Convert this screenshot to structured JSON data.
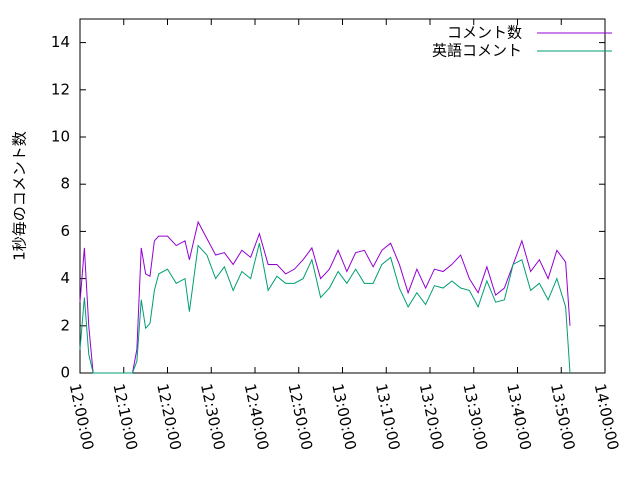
{
  "chart_data": {
    "type": "line",
    "ylabel": "1秒毎のコメント数",
    "x": [
      "12:00:00",
      "12:01:00",
      "12:02:00",
      "12:03:00",
      "12:06:00",
      "12:09:00",
      "12:12:00",
      "12:13:00",
      "12:14:00",
      "12:15:00",
      "12:16:00",
      "12:17:00",
      "12:18:00",
      "12:20:00",
      "12:22:00",
      "12:24:00",
      "12:25:00",
      "12:27:00",
      "12:29:00",
      "12:31:00",
      "12:33:00",
      "12:35:00",
      "12:37:00",
      "12:39:00",
      "12:41:00",
      "12:43:00",
      "12:45:00",
      "12:47:00",
      "12:49:00",
      "12:51:00",
      "12:53:00",
      "12:55:00",
      "12:57:00",
      "12:59:00",
      "13:01:00",
      "13:03:00",
      "13:05:00",
      "13:07:00",
      "13:09:00",
      "13:11:00",
      "13:13:00",
      "13:15:00",
      "13:17:00",
      "13:19:00",
      "13:21:00",
      "13:23:00",
      "13:25:00",
      "13:27:00",
      "13:29:00",
      "13:31:00",
      "13:33:00",
      "13:35:00",
      "13:37:00",
      "13:39:00",
      "13:41:00",
      "13:43:00",
      "13:45:00",
      "13:47:00",
      "13:49:00",
      "13:51:00",
      "13:52:00"
    ],
    "series": [
      {
        "name": "コメント数",
        "color": "#9400d3",
        "values": [
          3.0,
          5.3,
          2.0,
          0,
          0,
          0,
          0,
          1.0,
          5.3,
          4.2,
          4.1,
          5.6,
          5.8,
          5.8,
          5.4,
          5.6,
          4.8,
          6.4,
          5.7,
          5.0,
          5.1,
          4.6,
          5.2,
          4.9,
          5.9,
          4.6,
          4.6,
          4.2,
          4.4,
          4.8,
          5.3,
          4.0,
          4.4,
          5.2,
          4.3,
          5.1,
          5.2,
          4.5,
          5.2,
          5.5,
          4.6,
          3.4,
          4.4,
          3.6,
          4.4,
          4.3,
          4.6,
          5.0,
          4.0,
          3.4,
          4.5,
          3.3,
          3.6,
          4.6,
          5.6,
          4.3,
          4.8,
          4.0,
          5.2,
          4.7,
          2.0
        ]
      },
      {
        "name": "英語コメント",
        "color": "#009e73",
        "values": [
          1.0,
          3.2,
          0.8,
          0,
          0,
          0,
          0,
          0.5,
          3.1,
          1.9,
          2.1,
          3.5,
          4.2,
          4.4,
          3.8,
          4.0,
          2.6,
          5.4,
          5.0,
          4.0,
          4.5,
          3.5,
          4.3,
          4.0,
          5.5,
          3.5,
          4.1,
          3.8,
          3.8,
          4.0,
          4.8,
          3.2,
          3.6,
          4.3,
          3.8,
          4.4,
          3.8,
          3.8,
          4.6,
          4.9,
          3.6,
          2.8,
          3.4,
          2.9,
          3.7,
          3.6,
          3.9,
          3.6,
          3.5,
          2.8,
          3.9,
          3.0,
          3.1,
          4.6,
          4.8,
          3.5,
          3.8,
          3.1,
          4.0,
          2.8,
          0
        ]
      }
    ],
    "xlim": [
      "12:00:00",
      "14:00:00"
    ],
    "xticks": [
      "12:00:00",
      "12:10:00",
      "12:20:00",
      "12:30:00",
      "12:40:00",
      "12:50:00",
      "13:00:00",
      "13:10:00",
      "13:20:00",
      "13:30:00",
      "13:40:00",
      "13:50:00",
      "14:00:00"
    ],
    "ylim": [
      0,
      15
    ],
    "yticks": [
      0,
      2,
      4,
      6,
      8,
      10,
      12,
      14
    ],
    "legend": "upper right"
  }
}
